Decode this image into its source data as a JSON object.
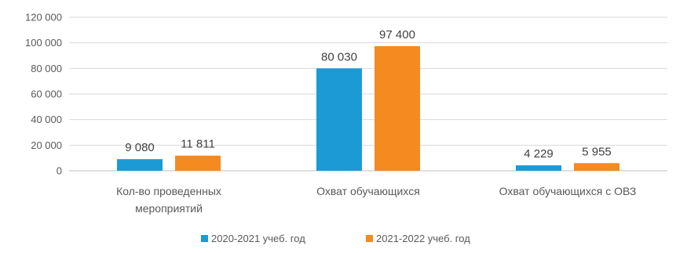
{
  "chart_data": {
    "type": "bar",
    "title": "",
    "xlabel": "",
    "ylabel": "",
    "ylim": [
      0,
      120000
    ],
    "yticks": [
      0,
      20000,
      40000,
      60000,
      80000,
      100000,
      120000
    ],
    "ytick_labels": [
      "0",
      "20 000",
      "40 000",
      "60 000",
      "80 000",
      "100 000",
      "120 000"
    ],
    "grid": true,
    "legend_position": "bottom",
    "categories": [
      [
        "Кол-во проведенных",
        "мероприятий"
      ],
      [
        "Охват обучающихся"
      ],
      [
        "Охват обучающихся с ОВЗ"
      ]
    ],
    "series": [
      {
        "name": "2020-2021 учеб. год",
        "color": "#1b9ad6",
        "values": [
          9080,
          80030,
          4229
        ],
        "labels": [
          "9 080",
          "80 030",
          "4 229"
        ]
      },
      {
        "name": "2021-2022 учеб. год",
        "color": "#f58a20",
        "values": [
          11811,
          97400,
          5955
        ],
        "labels": [
          "11 811",
          "97 400",
          "5 955"
        ]
      }
    ]
  }
}
